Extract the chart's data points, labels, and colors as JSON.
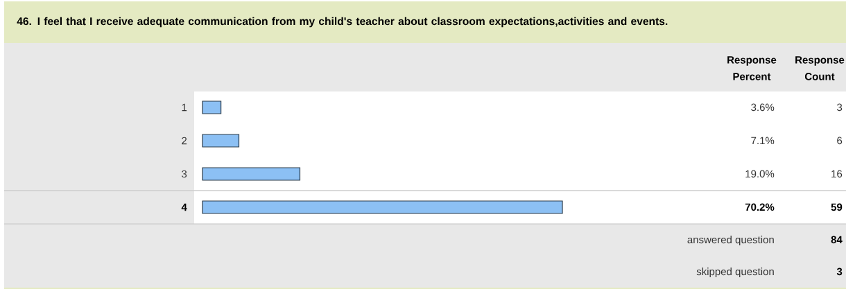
{
  "chart_data": {
    "type": "bar",
    "orientation": "horizontal",
    "title": "46. I feel that I receive adequate communication from my child's teacher about classroom expectations,activities and events.",
    "categories": [
      "1",
      "2",
      "3",
      "4"
    ],
    "values": [
      3.6,
      7.1,
      19.0,
      70.2
    ],
    "color": "#8cc0f4",
    "value_labels": [
      "3.6%",
      "7.1%",
      "19.0%",
      "70.2%"
    ],
    "tick_labels": "y",
    "annotations": [
      "Response Percent",
      "Response Count",
      "3",
      "6",
      "16",
      "59",
      "answered question",
      "84",
      "skipped question",
      "3"
    ]
  }
}
